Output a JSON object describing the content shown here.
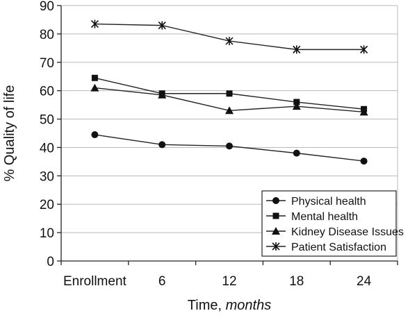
{
  "chart_data": {
    "type": "line",
    "x": [
      "Enrollment",
      "6",
      "12",
      "18",
      "24"
    ],
    "ylabel": "% Quality of life",
    "xlabel_prefix": "Time, ",
    "xlabel_unit": "months",
    "ylim": [
      0,
      90
    ],
    "yticks": [
      "0",
      "10",
      "20",
      "30",
      "40",
      "50",
      "60",
      "70",
      "80",
      "90"
    ],
    "grid": true,
    "legend_position": "bottom-right",
    "series": [
      {
        "name": "Physical health",
        "marker": "circle",
        "values": [
          44.5,
          41,
          40.5,
          38,
          35.2
        ]
      },
      {
        "name": "Mental health",
        "marker": "square",
        "values": [
          64.5,
          59,
          59,
          56,
          53.5
        ]
      },
      {
        "name": "Kidney Disease Issues",
        "marker": "triangle",
        "values": [
          61,
          58.5,
          53,
          54.5,
          52.5
        ]
      },
      {
        "name": "Patient Satisfaction",
        "marker": "asterisk",
        "values": [
          83.5,
          83,
          77.5,
          74.5,
          74.5
        ]
      }
    ]
  }
}
